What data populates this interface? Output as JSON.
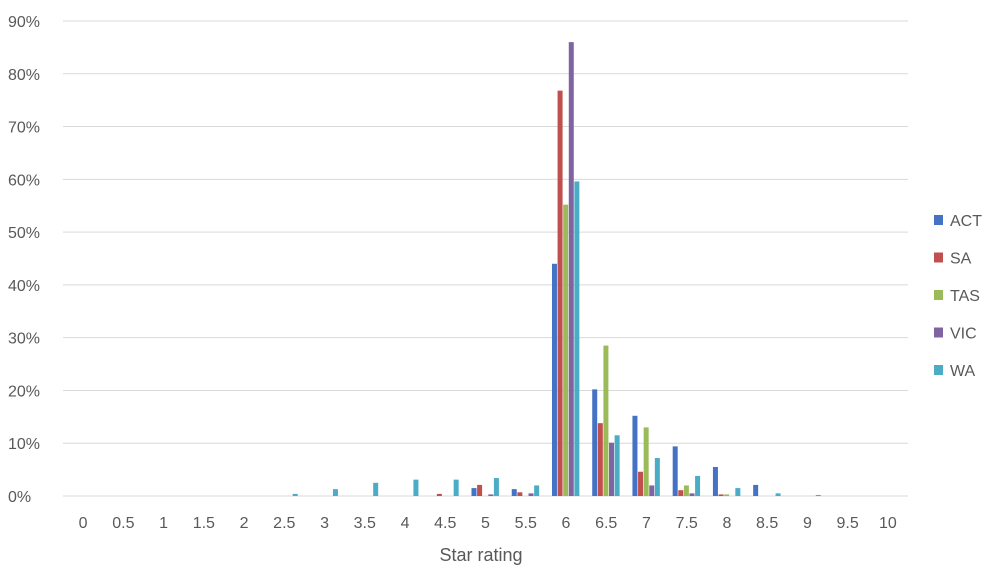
{
  "chart_data": {
    "type": "bar",
    "xlabel": "Star rating",
    "ylabel": "",
    "ylim": [
      0,
      90
    ],
    "ytick_step": 10,
    "y_unit": "%",
    "grid": true,
    "legend_position": "right",
    "categories": [
      "0",
      "0.5",
      "1",
      "1.5",
      "2",
      "2.5",
      "3",
      "3.5",
      "4",
      "4.5",
      "5",
      "5.5",
      "6",
      "6.5",
      "7",
      "7.5",
      "8",
      "8.5",
      "9",
      "9.5",
      "10"
    ],
    "series": [
      {
        "name": "ACT",
        "color": "#4472c4",
        "values": [
          0,
          0,
          0,
          0,
          0,
          0,
          0,
          0,
          0,
          0,
          1.5,
          1.3,
          44.0,
          20.2,
          15.2,
          9.4,
          5.5,
          2.1,
          0,
          0,
          0
        ]
      },
      {
        "name": "SA",
        "color": "#c0504d",
        "values": [
          0,
          0,
          0,
          0,
          0,
          0,
          0,
          0,
          0,
          0.4,
          2.1,
          0.7,
          76.8,
          13.8,
          4.6,
          1.1,
          0.3,
          0,
          0,
          0,
          0
        ]
      },
      {
        "name": "TAS",
        "color": "#9bbb59",
        "values": [
          0,
          0,
          0,
          0,
          0,
          0,
          0,
          0,
          0,
          0,
          0,
          0,
          55.2,
          28.5,
          13.0,
          2.0,
          0.3,
          0,
          0,
          0,
          0
        ]
      },
      {
        "name": "VIC",
        "color": "#8064a2",
        "values": [
          0,
          0,
          0,
          0,
          0,
          0,
          0,
          0,
          0,
          0,
          0.3,
          0.5,
          86.0,
          10.1,
          2.0,
          0.5,
          0,
          0,
          0,
          0,
          0
        ]
      },
      {
        "name": "WA",
        "color": "#4bacc6",
        "values": [
          0,
          0,
          0,
          0,
          0,
          0.4,
          1.3,
          2.5,
          3.1,
          3.1,
          3.4,
          2.0,
          59.6,
          11.5,
          7.2,
          3.8,
          1.5,
          0.5,
          0.2,
          0,
          0
        ]
      }
    ]
  }
}
